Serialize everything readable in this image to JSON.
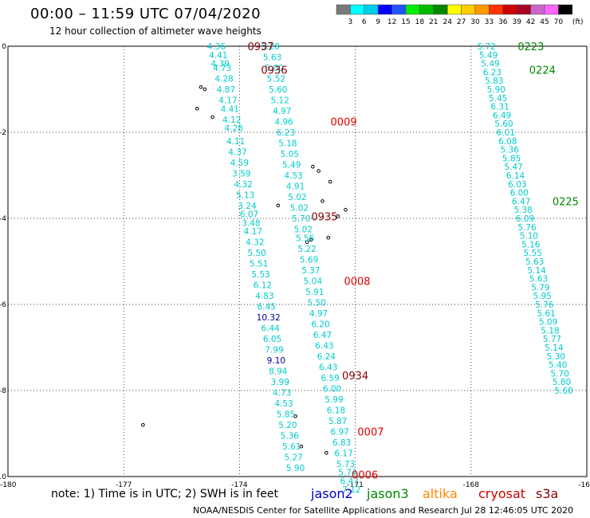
{
  "header": {
    "title": "00:00 – 11:59 UTC 07/04/2020",
    "subtitle": "12 hour collection of altimeter wave heights"
  },
  "legend": {
    "unit": "(ft)",
    "ticks": [
      "3",
      "6",
      "9",
      "12",
      "15",
      "18",
      "21",
      "24",
      "27",
      "30",
      "33",
      "36",
      "39",
      "42",
      "45",
      "70"
    ],
    "colors": [
      "#7a7a7a",
      "#00ffff",
      "#00ccee",
      "#0000ff",
      "#2255ff",
      "#00ee00",
      "#00bb00",
      "#008800",
      "#ffff00",
      "#ffcc00",
      "#ff9900",
      "#ff3300",
      "#cc0000",
      "#aa0022",
      "#cc66cc",
      "#ff66ff",
      "#000000"
    ]
  },
  "axes": {
    "x_ticks": [
      "-180",
      "-177",
      "-174",
      "-171",
      "-168",
      "-16"
    ],
    "y_ticks": [
      "0",
      "-2",
      "-4",
      "-6",
      "-8",
      "-10"
    ]
  },
  "footer": {
    "note": "note:  1) Time is in UTC;  2) SWH is in feet",
    "credit": "NOAA/NESDIS Center for Satellite Applications and Research    Jul 28 12:46:05 UTC 2020",
    "satellites": [
      {
        "name": "jason2",
        "color": "#0000cc"
      },
      {
        "name": "jason3",
        "color": "#008800"
      },
      {
        "name": "altika",
        "color": "#ff8800"
      },
      {
        "name": "cryosat",
        "color": "#cc0000"
      },
      {
        "name": "s3a",
        "color": "#880000"
      }
    ]
  },
  "map_data": {
    "x_range": [
      -180,
      -165
    ],
    "y_range": [
      0,
      -10
    ],
    "time_labels": [
      {
        "text": "0937",
        "lon": -173.45,
        "lat": 0.0,
        "color": "#880000"
      },
      {
        "text": "0936",
        "lon": -173.1,
        "lat": -0.55,
        "color": "#880000"
      },
      {
        "text": "0009",
        "lon": -171.3,
        "lat": -1.75,
        "color": "#dd0000"
      },
      {
        "text": "0935",
        "lon": -171.8,
        "lat": -3.95,
        "color": "#880000"
      },
      {
        "text": "0008",
        "lon": -170.95,
        "lat": -5.45,
        "color": "#dd0000"
      },
      {
        "text": "0934",
        "lon": -171.0,
        "lat": -7.65,
        "color": "#880000"
      },
      {
        "text": "0007",
        "lon": -170.6,
        "lat": -8.95,
        "color": "#dd0000"
      },
      {
        "text": "0006",
        "lon": -170.75,
        "lat": -9.95,
        "color": "#dd0000"
      },
      {
        "text": "0223",
        "lon": -166.45,
        "lat": 0.0,
        "color": "#008800"
      },
      {
        "text": "0224",
        "lon": -166.15,
        "lat": -0.55,
        "color": "#008800"
      },
      {
        "text": "0225",
        "lon": -165.55,
        "lat": -3.6,
        "color": "#008800"
      }
    ],
    "track_a": {
      "color": "#00cccc",
      "readings": [
        {
          "v": "4.36",
          "lon": -174.6,
          "lat": 0.0
        },
        {
          "v": "4.41",
          "lon": -174.55,
          "lat": -0.2
        },
        {
          "v": "4.39",
          "lon": -174.5,
          "lat": -0.4
        },
        {
          "v": "4.73",
          "lon": -174.45,
          "lat": -0.5
        },
        {
          "v": "4.28",
          "lon": -174.4,
          "lat": -0.75
        },
        {
          "v": "4.87",
          "lon": -174.35,
          "lat": -1.0
        },
        {
          "v": "4.17",
          "lon": -174.3,
          "lat": -1.25
        },
        {
          "v": "4.41",
          "lon": -174.25,
          "lat": -1.45
        },
        {
          "v": "4.12",
          "lon": -174.2,
          "lat": -1.7
        },
        {
          "v": "4.28",
          "lon": -174.15,
          "lat": -1.9
        },
        {
          "v": "4.11",
          "lon": -174.1,
          "lat": -2.2
        },
        {
          "v": "4.37",
          "lon": -174.05,
          "lat": -2.45
        },
        {
          "v": "4.59",
          "lon": -174.0,
          "lat": -2.7
        },
        {
          "v": "3.59",
          "lon": -173.95,
          "lat": -2.95
        },
        {
          "v": "4.32",
          "lon": -173.9,
          "lat": -3.2
        },
        {
          "v": "5.13",
          "lon": -173.85,
          "lat": -3.45
        },
        {
          "v": "3.24",
          "lon": -173.8,
          "lat": -3.7
        },
        {
          "v": "6.07",
          "lon": -173.75,
          "lat": -3.9
        },
        {
          "v": "3.48",
          "lon": -173.7,
          "lat": -4.1
        },
        {
          "v": "4.17",
          "lon": -173.65,
          "lat": -4.3
        },
        {
          "v": "4.32",
          "lon": -173.6,
          "lat": -4.55
        },
        {
          "v": "5.50",
          "lon": -173.55,
          "lat": -4.8
        },
        {
          "v": "5.51",
          "lon": -173.5,
          "lat": -5.05
        },
        {
          "v": "5.53",
          "lon": -173.45,
          "lat": -5.3
        },
        {
          "v": "6.12",
          "lon": -173.4,
          "lat": -5.55
        },
        {
          "v": "4.83",
          "lon": -173.35,
          "lat": -5.8
        },
        {
          "v": "6.45",
          "lon": -173.3,
          "lat": -6.05
        },
        {
          "v": "10.32",
          "lon": -173.25,
          "lat": -6.3,
          "c": "#000088"
        },
        {
          "v": "6.44",
          "lon": -173.2,
          "lat": -6.55
        },
        {
          "v": "6.05",
          "lon": -173.15,
          "lat": -6.8
        },
        {
          "v": "7.99",
          "lon": -173.1,
          "lat": -7.05
        },
        {
          "v": "9.10",
          "lon": -173.05,
          "lat": -7.3,
          "c": "#000088"
        },
        {
          "v": "8.94",
          "lon": -173.0,
          "lat": -7.55
        },
        {
          "v": "3.99",
          "lon": -172.95,
          "lat": -7.8
        },
        {
          "v": "4.73",
          "lon": -172.9,
          "lat": -8.05
        },
        {
          "v": "4.53",
          "lon": -172.85,
          "lat": -8.3
        },
        {
          "v": "5.85",
          "lon": -172.8,
          "lat": -8.55
        },
        {
          "v": "5.20",
          "lon": -172.75,
          "lat": -8.8
        },
        {
          "v": "5.36",
          "lon": -172.7,
          "lat": -9.05
        },
        {
          "v": "5.61",
          "lon": -172.65,
          "lat": -9.3
        },
        {
          "v": "5.27",
          "lon": -172.6,
          "lat": -9.55
        },
        {
          "v": "5.90",
          "lon": -172.55,
          "lat": -9.8
        }
      ]
    },
    "track_b": {
      "color": "#00cccc",
      "readings": [
        {
          "v": "5.28",
          "lon": -173.2,
          "lat": 0.0
        },
        {
          "v": "5.63",
          "lon": -173.15,
          "lat": -0.25
        },
        {
          "v": "5.00",
          "lon": -173.1,
          "lat": -0.5
        },
        {
          "v": "5.52",
          "lon": -173.05,
          "lat": -0.75
        },
        {
          "v": "5.60",
          "lon": -173.0,
          "lat": -1.0
        },
        {
          "v": "5.12",
          "lon": -172.95,
          "lat": -1.25
        },
        {
          "v": "4.97",
          "lon": -172.9,
          "lat": -1.5
        },
        {
          "v": "4.96",
          "lon": -172.85,
          "lat": -1.75
        },
        {
          "v": "6.23",
          "lon": -172.8,
          "lat": -2.0
        },
        {
          "v": "5.18",
          "lon": -172.75,
          "lat": -2.25
        },
        {
          "v": "5.05",
          "lon": -172.7,
          "lat": -2.5
        },
        {
          "v": "5.49",
          "lon": -172.65,
          "lat": -2.75
        },
        {
          "v": "4.53",
          "lon": -172.6,
          "lat": -3.0
        },
        {
          "v": "4.91",
          "lon": -172.55,
          "lat": -3.25
        },
        {
          "v": "5.02",
          "lon": -172.5,
          "lat": -3.5
        },
        {
          "v": "5.02",
          "lon": -172.45,
          "lat": -3.75
        },
        {
          "v": "5.70",
          "lon": -172.4,
          "lat": -4.0
        },
        {
          "v": "5.02",
          "lon": -172.35,
          "lat": -4.25
        },
        {
          "v": "5.56",
          "lon": -172.3,
          "lat": -4.45
        },
        {
          "v": "5.22",
          "lon": -172.25,
          "lat": -4.7
        },
        {
          "v": "5.69",
          "lon": -172.2,
          "lat": -4.95
        },
        {
          "v": "5.37",
          "lon": -172.15,
          "lat": -5.2
        },
        {
          "v": "5.04",
          "lon": -172.1,
          "lat": -5.45
        },
        {
          "v": "5.91",
          "lon": -172.05,
          "lat": -5.7
        },
        {
          "v": "5.50",
          "lon": -172.0,
          "lat": -5.95
        },
        {
          "v": "4.97",
          "lon": -171.95,
          "lat": -6.2
        },
        {
          "v": "6.20",
          "lon": -171.9,
          "lat": -6.45
        },
        {
          "v": "6.47",
          "lon": -171.85,
          "lat": -6.7
        },
        {
          "v": "6.43",
          "lon": -171.8,
          "lat": -6.95
        },
        {
          "v": "6.24",
          "lon": -171.75,
          "lat": -7.2
        },
        {
          "v": "6.43",
          "lon": -171.7,
          "lat": -7.45
        },
        {
          "v": "6.59",
          "lon": -171.65,
          "lat": -7.7
        },
        {
          "v": "6.00",
          "lon": -171.6,
          "lat": -7.95
        },
        {
          "v": "5.99",
          "lon": -171.55,
          "lat": -8.2
        },
        {
          "v": "6.18",
          "lon": -171.5,
          "lat": -8.45
        },
        {
          "v": "5.87",
          "lon": -171.45,
          "lat": -8.7
        },
        {
          "v": "6.97",
          "lon": -171.4,
          "lat": -8.95
        },
        {
          "v": "6.83",
          "lon": -171.35,
          "lat": -9.2
        },
        {
          "v": "6.17",
          "lon": -171.3,
          "lat": -9.45
        },
        {
          "v": "5.73",
          "lon": -171.25,
          "lat": -9.7
        },
        {
          "v": "5.74",
          "lon": -171.2,
          "lat": -9.9
        },
        {
          "v": "6.47",
          "lon": -171.15,
          "lat": -10.1
        },
        {
          "v": "7.12",
          "lon": -171.1,
          "lat": -10.3
        }
      ]
    },
    "track_c": {
      "color": "#00cccc",
      "readings": [
        {
          "v": "5.72",
          "lon": -167.6,
          "lat": 0.0
        },
        {
          "v": "5.49",
          "lon": -167.55,
          "lat": -0.2
        },
        {
          "v": "5.49",
          "lon": -167.5,
          "lat": -0.4
        },
        {
          "v": "6.23",
          "lon": -167.45,
          "lat": -0.6
        },
        {
          "v": "5.83",
          "lon": -167.4,
          "lat": -0.8
        },
        {
          "v": "5.90",
          "lon": -167.35,
          "lat": -1.0
        },
        {
          "v": "5.45",
          "lon": -167.3,
          "lat": -1.2
        },
        {
          "v": "6.31",
          "lon": -167.25,
          "lat": -1.4
        },
        {
          "v": "6.49",
          "lon": -167.2,
          "lat": -1.6
        },
        {
          "v": "5.60",
          "lon": -167.15,
          "lat": -1.8
        },
        {
          "v": "6.01",
          "lon": -167.1,
          "lat": -2.0
        },
        {
          "v": "6.08",
          "lon": -167.05,
          "lat": -2.2
        },
        {
          "v": "5.36",
          "lon": -167.0,
          "lat": -2.4
        },
        {
          "v": "5.85",
          "lon": -166.95,
          "lat": -2.6
        },
        {
          "v": "5.47",
          "lon": -166.9,
          "lat": -2.8
        },
        {
          "v": "6.14",
          "lon": -166.85,
          "lat": -3.0
        },
        {
          "v": "6.03",
          "lon": -166.8,
          "lat": -3.2
        },
        {
          "v": "6.00",
          "lon": -166.75,
          "lat": -3.4
        },
        {
          "v": "6.47",
          "lon": -166.7,
          "lat": -3.6
        },
        {
          "v": "5.38",
          "lon": -166.65,
          "lat": -3.8
        },
        {
          "v": "6.09",
          "lon": -166.6,
          "lat": -4.0
        },
        {
          "v": "5.76",
          "lon": -166.55,
          "lat": -4.2
        },
        {
          "v": "5.10",
          "lon": -166.5,
          "lat": -4.4
        },
        {
          "v": "5.16",
          "lon": -166.45,
          "lat": -4.6
        },
        {
          "v": "5.55",
          "lon": -166.4,
          "lat": -4.8
        },
        {
          "v": "5.63",
          "lon": -166.35,
          "lat": -5.0
        },
        {
          "v": "5.14",
          "lon": -166.3,
          "lat": -5.2
        },
        {
          "v": "5.63",
          "lon": -166.25,
          "lat": -5.4
        },
        {
          "v": "5.79",
          "lon": -166.2,
          "lat": -5.6
        },
        {
          "v": "5.95",
          "lon": -166.15,
          "lat": -5.8
        },
        {
          "v": "5.76",
          "lon": -166.1,
          "lat": -6.0
        },
        {
          "v": "5.61",
          "lon": -166.05,
          "lat": -6.2
        },
        {
          "v": "5.09",
          "lon": -166.0,
          "lat": -6.4
        },
        {
          "v": "5.18",
          "lon": -165.95,
          "lat": -6.6
        },
        {
          "v": "5.77",
          "lon": -165.9,
          "lat": -6.8
        },
        {
          "v": "5.14",
          "lon": -165.85,
          "lat": -7.0
        },
        {
          "v": "5.30",
          "lon": -165.8,
          "lat": -7.2
        },
        {
          "v": "5.40",
          "lon": -165.75,
          "lat": -7.4
        },
        {
          "v": "5.70",
          "lon": -165.7,
          "lat": -7.6
        },
        {
          "v": "5.80",
          "lon": -165.65,
          "lat": -7.8
        },
        {
          "v": "5.60",
          "lon": -165.6,
          "lat": -8.0
        }
      ]
    },
    "islands": [
      {
        "lon": -175.0,
        "lat": -0.95
      },
      {
        "lon": -174.9,
        "lat": -1.0
      },
      {
        "lon": -175.1,
        "lat": -1.45
      },
      {
        "lon": -174.7,
        "lat": -1.65
      },
      {
        "lon": -172.1,
        "lat": -2.8
      },
      {
        "lon": -171.95,
        "lat": -2.9
      },
      {
        "lon": -171.65,
        "lat": -3.15
      },
      {
        "lon": -171.85,
        "lat": -3.6
      },
      {
        "lon": -171.25,
        "lat": -3.8
      },
      {
        "lon": -171.45,
        "lat": -3.95
      },
      {
        "lon": -173.0,
        "lat": -3.7
      },
      {
        "lon": -172.15,
        "lat": -4.5
      },
      {
        "lon": -172.25,
        "lat": -4.55
      },
      {
        "lon": -171.7,
        "lat": -4.45
      },
      {
        "lon": -172.55,
        "lat": -8.6
      },
      {
        "lon": -172.4,
        "lat": -9.3
      },
      {
        "lon": -171.75,
        "lat": -9.45
      },
      {
        "lon": -176.5,
        "lat": -8.8
      }
    ]
  }
}
